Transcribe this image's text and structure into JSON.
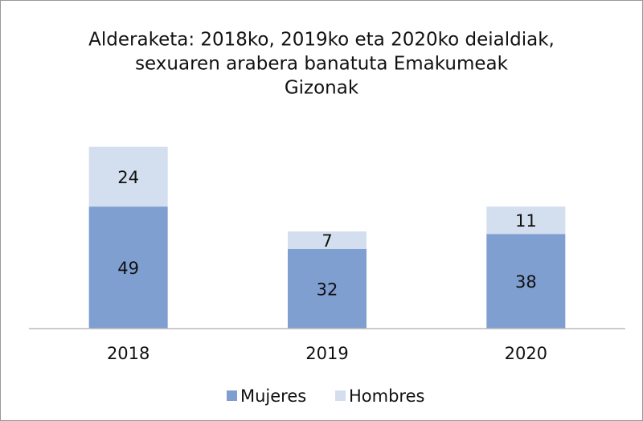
{
  "chart_data": {
    "type": "bar",
    "stacked": true,
    "title": [
      "Alderaketa: 2018ko, 2019ko eta 2020ko deialdiak,",
      "sexuaren arabera banatuta  Emakumeak",
      "Gizonak"
    ],
    "categories": [
      "2018",
      "2019",
      "2020"
    ],
    "series": [
      {
        "name": "Mujeres",
        "color": "#7f9fd1",
        "values": [
          49,
          32,
          38
        ]
      },
      {
        "name": "Hombres",
        "color": "#d3deef",
        "values": [
          24,
          7,
          11
        ]
      }
    ],
    "ylim": [
      0,
      80
    ],
    "legend": "bottom"
  }
}
